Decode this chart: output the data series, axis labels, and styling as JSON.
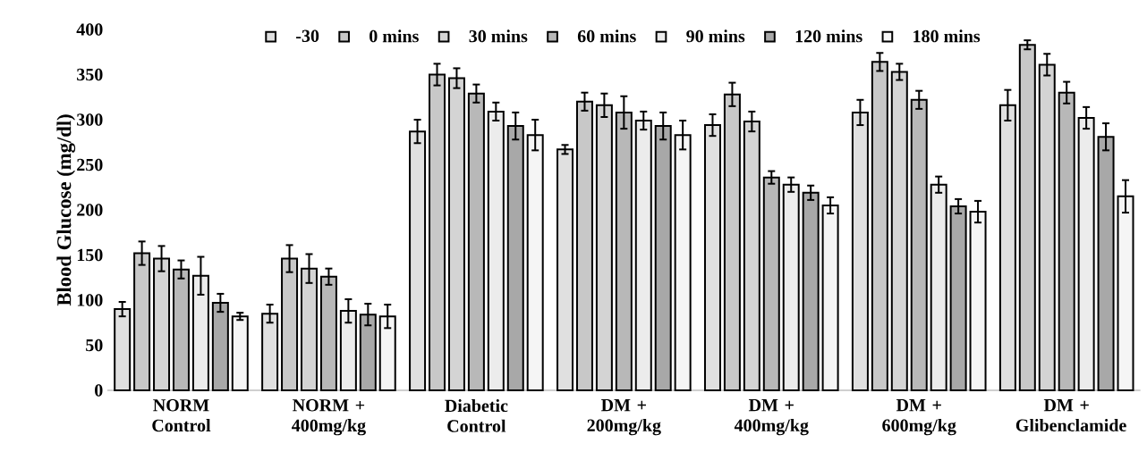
{
  "chart_data": {
    "type": "bar",
    "ylabel": "Blood Glucose (mg/dl)",
    "categories": [
      "NORM Control",
      "NORM + 400mg/kg",
      "Diabetic Control",
      "DM + 200mg/kg",
      "DM + 400mg/kg",
      "DM + 600mg/kg",
      "DM + Glibenclamide"
    ],
    "series": [
      {
        "name": "-30",
        "color": "#e0e0e0",
        "values": [
          90,
          85,
          287,
          267,
          294,
          308,
          316
        ],
        "errors": [
          8,
          10,
          13,
          5,
          12,
          14,
          17
        ]
      },
      {
        "name": "0 mins",
        "color": "#c8c8c8",
        "values": [
          152,
          146,
          350,
          320,
          328,
          364,
          383
        ],
        "errors": [
          13,
          15,
          12,
          10,
          13,
          10,
          5
        ]
      },
      {
        "name": "30 mins",
        "color": "#d4d4d4",
        "values": [
          146,
          135,
          346,
          316,
          298,
          353,
          361
        ],
        "errors": [
          14,
          16,
          11,
          13,
          11,
          9,
          12
        ]
      },
      {
        "name": "60 mins",
        "color": "#b8b8b8",
        "values": [
          134,
          126,
          329,
          308,
          236,
          322,
          330
        ],
        "errors": [
          10,
          9,
          10,
          18,
          7,
          10,
          12
        ]
      },
      {
        "name": "90 mins",
        "color": "#ececec",
        "values": [
          127,
          88,
          309,
          299,
          228,
          228,
          302
        ],
        "errors": [
          21,
          13,
          10,
          10,
          8,
          9,
          12
        ]
      },
      {
        "name": "120 mins",
        "color": "#a8a8a8",
        "values": [
          97,
          84,
          293,
          293,
          219,
          204,
          281
        ],
        "errors": [
          10,
          12,
          15,
          15,
          8,
          8,
          15
        ]
      },
      {
        "name": "180 mins",
        "color": "#f5f5f5",
        "values": [
          82,
          82,
          283,
          283,
          205,
          198,
          215
        ],
        "errors": [
          4,
          13,
          17,
          16,
          9,
          12,
          18
        ]
      }
    ],
    "ylim": [
      0,
      400
    ],
    "yticks": [
      0,
      50,
      100,
      150,
      200,
      250,
      300,
      350,
      400
    ],
    "grid": false,
    "legend": "top"
  }
}
